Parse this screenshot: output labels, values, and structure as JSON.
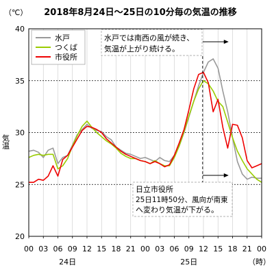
{
  "chart_data": {
    "type": "line",
    "title": "2018年8月24日～25日の10分毎の気温の推移",
    "unit_label": "（℃）",
    "ylabel": "気温",
    "xlabel_unit": "（時）",
    "ylim": [
      20,
      40
    ],
    "yticks": [
      20,
      25,
      30,
      35,
      40
    ],
    "xlim": [
      0,
      48
    ],
    "xticks": [
      0,
      3,
      6,
      9,
      12,
      15,
      18,
      21,
      24,
      27,
      30,
      33,
      36,
      39,
      42,
      45,
      48
    ],
    "xtick_labels": [
      "00",
      "03",
      "06",
      "09",
      "12",
      "15",
      "18",
      "21",
      "00",
      "03",
      "06",
      "09",
      "12",
      "15",
      "18",
      "21",
      "00"
    ],
    "day_labels": [
      {
        "x": 8,
        "label": "24日"
      },
      {
        "x": 33,
        "label": "25日"
      }
    ],
    "hgrid_dashed": [
      25,
      30,
      35
    ],
    "event_line_x": 35.83,
    "grid": true,
    "legend_position": "top-left",
    "series": [
      {
        "name": "水戸",
        "color": "#999999",
        "x": [
          0,
          1,
          2,
          3,
          4,
          5,
          6,
          7,
          8,
          9,
          10,
          11,
          12,
          13,
          14,
          15,
          16,
          17,
          18,
          19,
          20,
          21,
          22,
          23,
          24,
          25,
          26,
          27,
          28,
          29,
          30,
          31,
          32,
          33,
          34,
          35,
          36,
          37,
          38,
          39,
          40,
          41,
          42,
          43,
          44,
          45,
          46,
          47,
          48
        ],
        "values": [
          28.2,
          28.3,
          28.1,
          27.6,
          28.3,
          28.5,
          27.0,
          27.6,
          27.8,
          28.8,
          29.8,
          30.3,
          30.8,
          30.4,
          30.2,
          30.1,
          29.6,
          29.3,
          28.6,
          28.3,
          28.0,
          27.9,
          27.7,
          27.5,
          27.6,
          27.4,
          27.2,
          27.6,
          27.3,
          27.2,
          27.8,
          28.7,
          30.0,
          31.5,
          33.0,
          34.5,
          35.8,
          36.8,
          37.1,
          36.2,
          34.0,
          32.0,
          29.5,
          27.2,
          26.0,
          25.5,
          25.7,
          25.6,
          25.6
        ]
      },
      {
        "name": "つくば",
        "color": "#99cc00",
        "x": [
          0,
          1,
          2,
          3,
          4,
          5,
          6,
          7,
          8,
          9,
          10,
          11,
          12,
          13,
          14,
          15,
          16,
          17,
          18,
          19,
          20,
          21,
          22,
          23,
          24,
          25,
          26,
          27,
          28,
          29,
          30,
          31,
          32,
          33,
          34,
          35,
          36,
          37,
          38,
          39,
          40,
          41,
          42,
          43,
          44,
          45,
          46,
          47,
          48
        ],
        "values": [
          27.6,
          27.8,
          27.9,
          27.8,
          27.9,
          27.9,
          26.5,
          26.8,
          27.5,
          28.7,
          29.7,
          30.6,
          31.1,
          30.5,
          30.0,
          29.6,
          29.2,
          28.9,
          28.5,
          28.0,
          27.7,
          27.5,
          27.5,
          27.3,
          27.2,
          27.0,
          27.3,
          27.0,
          26.8,
          26.8,
          27.6,
          28.7,
          30.1,
          31.6,
          33.0,
          34.2,
          35.0,
          34.7,
          34.0,
          33.0,
          32.5,
          31.0,
          29.5,
          28.2,
          27.3,
          26.5,
          26.0,
          25.5,
          25.2
        ]
      },
      {
        "name": "市役所",
        "color": "#ee0000",
        "x": [
          0,
          1,
          2,
          3,
          4,
          5,
          6,
          7,
          8,
          9,
          10,
          11,
          12,
          13,
          14,
          15,
          16,
          17,
          18,
          19,
          20,
          21,
          22,
          23,
          24,
          25,
          26,
          27,
          28,
          29,
          30,
          31,
          32,
          33,
          34,
          35,
          36,
          37,
          38,
          39,
          40,
          41,
          42,
          43,
          44,
          45,
          46,
          47,
          48
        ],
        "values": [
          25.2,
          25.2,
          25.5,
          25.4,
          25.8,
          26.8,
          25.8,
          27.4,
          27.8,
          28.6,
          29.4,
          30.2,
          30.6,
          30.5,
          30.3,
          30.0,
          29.4,
          29.0,
          28.6,
          28.2,
          27.9,
          27.7,
          27.5,
          27.3,
          27.2,
          27.0,
          27.2,
          27.0,
          26.7,
          26.9,
          27.8,
          29.0,
          30.3,
          32.2,
          34.2,
          35.6,
          35.8,
          34.8,
          32.0,
          33.2,
          30.5,
          28.5,
          30.8,
          30.7,
          29.5,
          27.3,
          26.6,
          26.8,
          27.0
        ]
      }
    ],
    "annotations": [
      {
        "lines": [
          "水戸では南西の風が続き、",
          "気温が上がり続ける。"
        ]
      },
      {
        "lines": [
          "日立市役所",
          "25日11時50分、風向が南東",
          "へ変わり気温が下がる。"
        ]
      }
    ]
  }
}
